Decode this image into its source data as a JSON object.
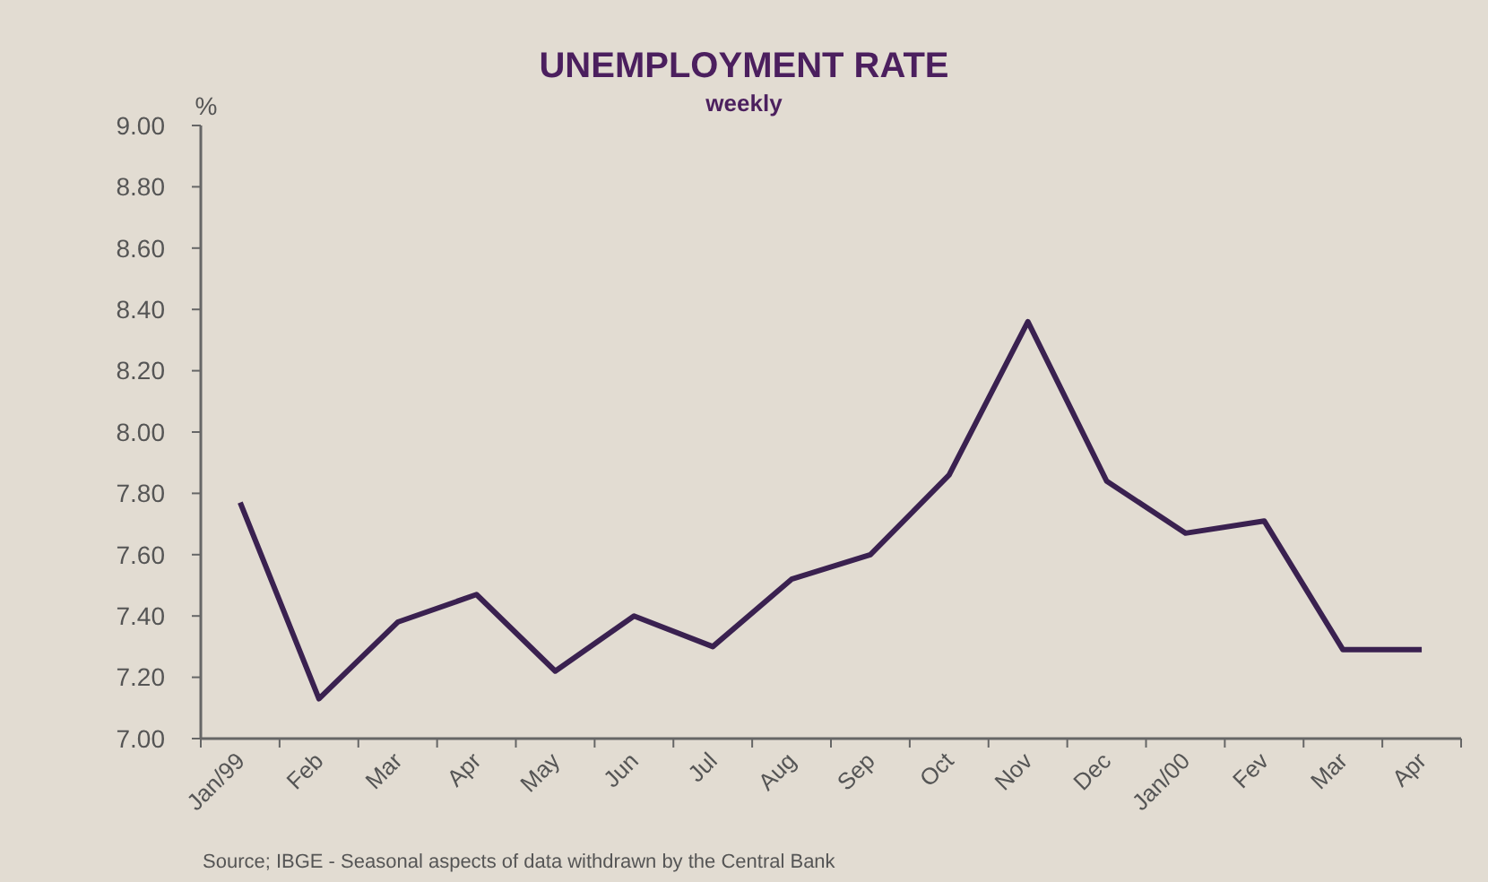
{
  "chart_data": {
    "type": "line",
    "title": "UNEMPLOYMENT RATE",
    "subtitle": "weekly",
    "ylabel": "%",
    "categories": [
      "Jan/99",
      "Feb",
      "Mar",
      "Apr",
      "May",
      "Jun",
      "Jul",
      "Aug",
      "Sep",
      "Oct",
      "Nov",
      "Dec",
      "Jan/00",
      "Fev",
      "Mar",
      "Apr"
    ],
    "series": [
      {
        "color": "#3a2150",
        "values": [
          7.77,
          7.13,
          7.38,
          7.47,
          7.22,
          7.4,
          7.3,
          7.52,
          7.6,
          7.86,
          8.36,
          7.84,
          7.67,
          7.71,
          7.29,
          7.29
        ]
      }
    ],
    "ylim": [
      7,
      9
    ],
    "yticks": [
      {
        "value": 7,
        "label": "7.00"
      },
      {
        "value": 7.2,
        "label": "7.20"
      },
      {
        "value": 7.4,
        "label": "7.40"
      },
      {
        "value": 7.6,
        "label": "7.60"
      },
      {
        "value": 7.8,
        "label": "7.80"
      },
      {
        "value": 8,
        "label": "8.00"
      },
      {
        "value": 8.2,
        "label": "8.20"
      },
      {
        "value": 8.4,
        "label": "8.40"
      },
      {
        "value": 8.6,
        "label": "8.60"
      },
      {
        "value": 8.8,
        "label": "8.80"
      },
      {
        "value": 9,
        "label": "9.00"
      }
    ],
    "annotations": [
      "Source; IBGE - Seasonal aspects of data withdrawn by the Central Bank"
    ],
    "grid": false,
    "marker": "none",
    "line_style": "solid"
  }
}
